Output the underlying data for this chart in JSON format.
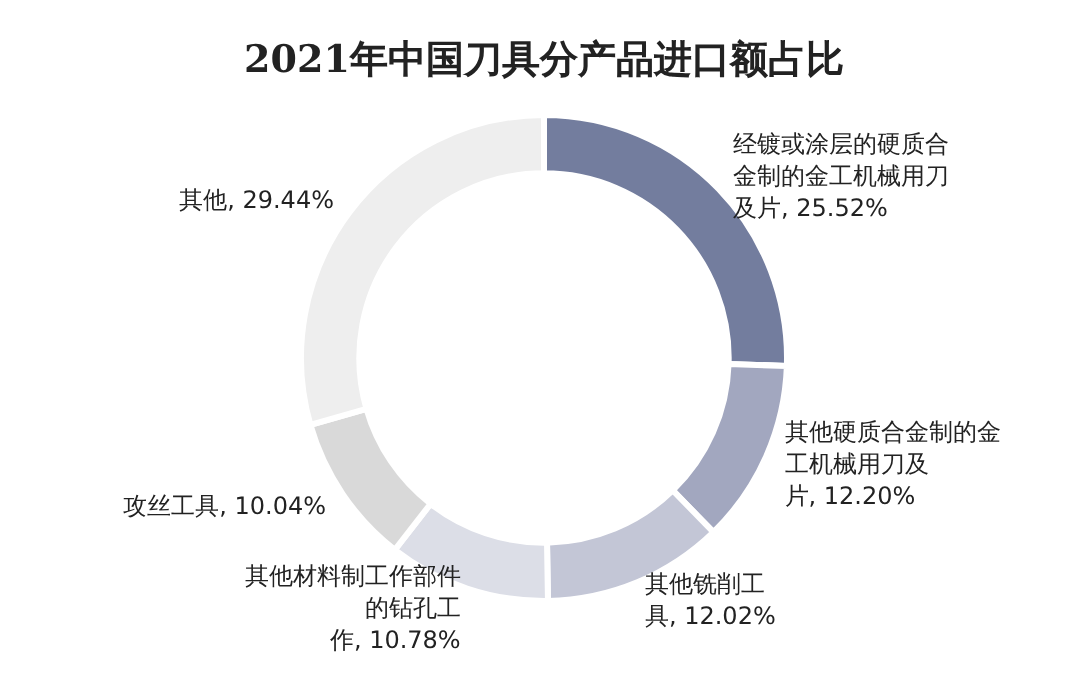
{
  "chart_data": {
    "type": "donut",
    "title": "2021年中国刀具分产品进口额占比",
    "categories": [
      "经镀或涂层的硬质合金制的金工机械用刀及片",
      "其他硬质合金制的金工机械用刀及片",
      "其他铣削工具",
      "其他材料制工作部件的钻孔工作",
      "攻丝工具",
      "其他"
    ],
    "values": [
      25.52,
      12.2,
      12.02,
      10.78,
      10.04,
      29.44
    ],
    "value_labels": [
      "25.52%",
      "12.20%",
      "12.02%",
      "10.78%",
      "10.04%",
      "29.44%"
    ],
    "colors": [
      "#737d9e",
      "#a2a7bf",
      "#c3c6d6",
      "#dcdee7",
      "#d9d9d9",
      "#eeeeee"
    ],
    "legend": false
  }
}
